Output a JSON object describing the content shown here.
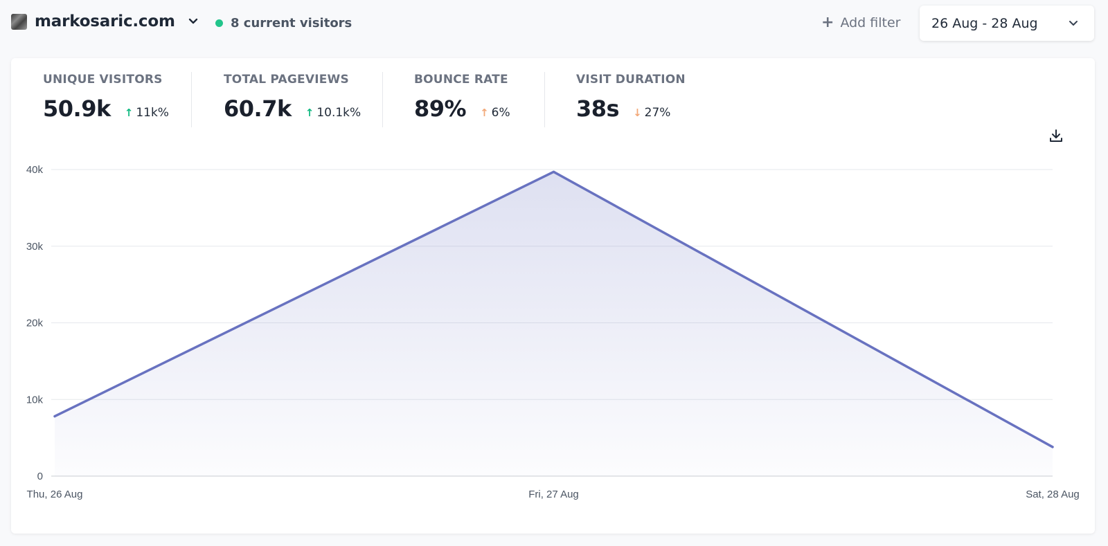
{
  "header": {
    "site_name": "markosaric.com",
    "current_visitors": "8 current visitors",
    "add_filter": "Add filter",
    "date_range": "26 Aug - 28 Aug"
  },
  "stats": [
    {
      "label": "UNIQUE VISITORS",
      "value": "50.9k",
      "change": "11k%",
      "direction": "up"
    },
    {
      "label": "TOTAL PAGEVIEWS",
      "value": "60.7k",
      "change": "10.1k%",
      "direction": "up"
    },
    {
      "label": "BOUNCE RATE",
      "value": "89%",
      "change": "6%",
      "direction": "up"
    },
    {
      "label": "VISIT DURATION",
      "value": "38s",
      "change": "27%",
      "direction": "down"
    }
  ],
  "colors": {
    "accent": "#6872c0",
    "live_dot": "#22c58b",
    "positive": "#10b981",
    "warning": "#f2a878"
  },
  "chart_data": {
    "type": "area",
    "title": "",
    "xlabel": "",
    "ylabel": "",
    "categories": [
      "Thu, 26 Aug",
      "Fri, 27 Aug",
      "Sat, 28 Aug"
    ],
    "series": [
      {
        "name": "Visitors",
        "values": [
          7800,
          39700,
          3800
        ]
      }
    ],
    "ylim": [
      0,
      40000
    ],
    "yticks": [
      0,
      10000,
      20000,
      30000,
      40000
    ],
    "ytick_labels": [
      "0",
      "10k",
      "20k",
      "30k",
      "40k"
    ],
    "grid": true
  }
}
